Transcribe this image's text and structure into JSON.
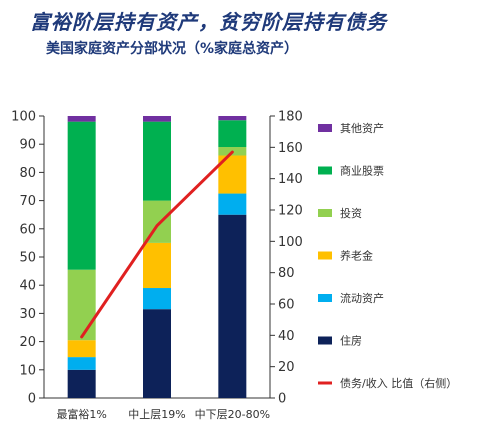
{
  "header": {
    "title": "富裕阶层持有资产，贫穷阶层持有债务",
    "subtitle": "美国家庭资产分部状况（%家庭总资产）"
  },
  "chart_data": {
    "type": "bar",
    "stacked": true,
    "categories": [
      "最富裕1%",
      "中上层19%",
      "中下层20-80%"
    ],
    "ylim": [
      0,
      100
    ],
    "y_ticks": [
      0,
      10,
      20,
      30,
      40,
      50,
      60,
      70,
      80,
      90,
      100
    ],
    "y2lim": [
      0,
      180
    ],
    "y2_ticks": [
      0,
      20,
      40,
      60,
      80,
      100,
      120,
      140,
      160,
      180
    ],
    "grid": false,
    "legend_position": "right",
    "series": [
      {
        "name": "住房",
        "color": "#0d2259",
        "values": [
          10,
          31.5,
          65
        ]
      },
      {
        "name": "流动资产",
        "color": "#00aeef",
        "values": [
          4.5,
          7.5,
          7.5
        ]
      },
      {
        "name": "养老金",
        "color": "#ffc000",
        "values": [
          6,
          16,
          13.5
        ]
      },
      {
        "name": "投资",
        "color": "#92d050",
        "values": [
          25,
          15,
          3
        ]
      },
      {
        "name": "商业股票",
        "color": "#00b050",
        "values": [
          52.5,
          28,
          9.5
        ]
      },
      {
        "name": "其他资产",
        "color": "#7030a0",
        "values": [
          2,
          2,
          1.5
        ]
      }
    ],
    "line_series": {
      "name": "债务/收入 比值（右侧）",
      "color": "#e02020",
      "axis": "right",
      "values": [
        39,
        110,
        157
      ]
    }
  }
}
